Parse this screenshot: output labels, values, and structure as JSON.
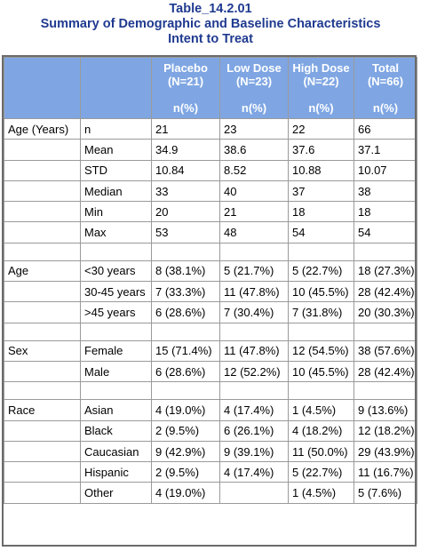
{
  "titles": [
    "Table_14.2.01",
    "Summary of Demographic and Baseline Characteristics",
    "Intent to Treat"
  ],
  "header": {
    "columns": [
      {
        "name": "Placebo",
        "n": "(N=21)",
        "stat": "n(%)"
      },
      {
        "name": "Low Dose",
        "n": "(N=23)",
        "stat": "n(%)"
      },
      {
        "name": "High Dose",
        "n": "(N=22)",
        "stat": "n(%)"
      },
      {
        "name": "Total",
        "n": "(N=66)",
        "stat": "n(%)"
      }
    ]
  },
  "sections": [
    {
      "label": "Age (Years)",
      "rows": [
        {
          "sub": "n",
          "cells": [
            "21",
            "23",
            "22",
            "66"
          ]
        },
        {
          "sub": "Mean",
          "cells": [
            "34.9",
            "38.6",
            "37.6",
            "37.1"
          ]
        },
        {
          "sub": "STD",
          "cells": [
            "10.84",
            "8.52",
            "10.88",
            "10.07"
          ]
        },
        {
          "sub": "Median",
          "cells": [
            "33",
            "40",
            "37",
            "38"
          ]
        },
        {
          "sub": "Min",
          "cells": [
            "20",
            "21",
            "18",
            "18"
          ]
        },
        {
          "sub": "Max",
          "cells": [
            "53",
            "48",
            "54",
            "54"
          ]
        }
      ]
    },
    {
      "label": "Age",
      "rows": [
        {
          "sub": "<30 years",
          "cells": [
            "8 (38.1%)",
            "5 (21.7%)",
            "5 (22.7%)",
            "18 (27.3%)"
          ]
        },
        {
          "sub": "30-45 years",
          "cells": [
            "7 (33.3%)",
            "11 (47.8%)",
            "10 (45.5%)",
            "28 (42.4%)"
          ]
        },
        {
          "sub": ">45 years",
          "cells": [
            "6 (28.6%)",
            "7 (30.4%)",
            "7 (31.8%)",
            "20 (30.3%)"
          ]
        }
      ]
    },
    {
      "label": "Sex",
      "rows": [
        {
          "sub": "Female",
          "cells": [
            "15 (71.4%)",
            "11 (47.8%)",
            "12 (54.5%)",
            "38 (57.6%)"
          ]
        },
        {
          "sub": "Male",
          "cells": [
            "6 (28.6%)",
            "12 (52.2%)",
            "10 (45.5%)",
            "28 (42.4%)"
          ]
        }
      ]
    },
    {
      "label": "Race",
      "rows": [
        {
          "sub": "Asian",
          "cells": [
            "4 (19.0%)",
            "4 (17.4%)",
            "1 (4.5%)",
            "9 (13.6%)"
          ]
        },
        {
          "sub": "Black",
          "cells": [
            "2 (9.5%)",
            "6 (26.1%)",
            "4 (18.2%)",
            "12 (18.2%)"
          ]
        },
        {
          "sub": "Caucasian",
          "cells": [
            "9 (42.9%)",
            "9 (39.1%)",
            "11 (50.0%)",
            "29 (43.9%)"
          ]
        },
        {
          "sub": "Hispanic",
          "cells": [
            "2 (9.5%)",
            "4 (17.4%)",
            "5 (22.7%)",
            "11 (16.7%)"
          ]
        },
        {
          "sub": "Other",
          "cells": [
            "4 (19.0%)",
            "",
            "1 (4.5%)",
            "5 (7.6%)"
          ]
        }
      ]
    }
  ],
  "colors": {
    "title": "#1f3a8f",
    "header_bg": "#7fa6e3",
    "header_text": "#ffffff",
    "border": "#9a9a9a"
  }
}
